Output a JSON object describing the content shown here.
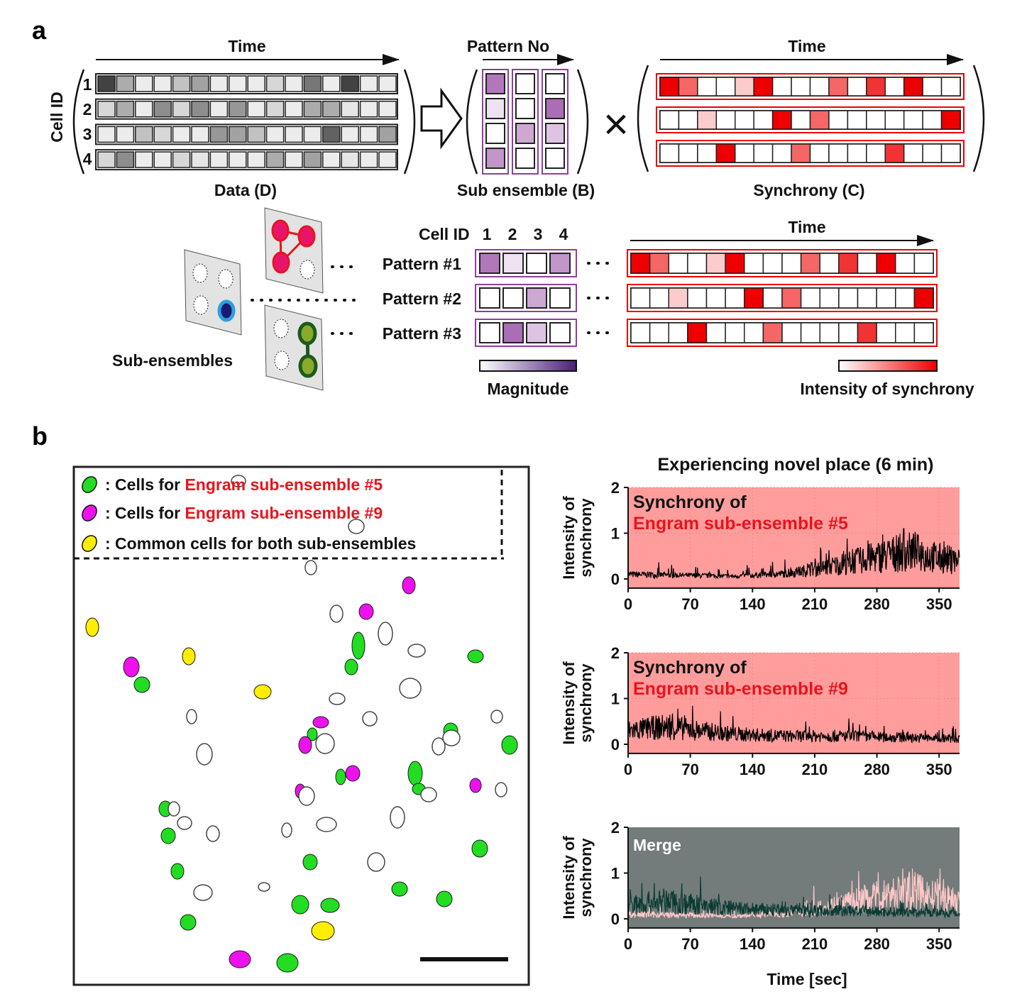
{
  "panel_a": {
    "label": "a",
    "time_label": "Time",
    "cell_id_label": "Cell ID",
    "row_ids": [
      "1",
      "2",
      "3",
      "4"
    ],
    "data_label": "Data (D)",
    "pattern_no_label": "Pattern No",
    "sub_ensemble_label": "Sub ensemble (B)",
    "times_symbol": "×",
    "synchrony_label": "Synchrony (C)",
    "data_matrix_darkness": [
      [
        0.85,
        0.35,
        0.05,
        0.05,
        0.25,
        0.4,
        0.05,
        0.05,
        0.05,
        0.15,
        0.05,
        0.6,
        0.05,
        0.85,
        0.05,
        0.05
      ],
      [
        0.15,
        0.35,
        0.05,
        0.5,
        0.15,
        0.5,
        0.05,
        0.45,
        0.05,
        0.15,
        0.05,
        0.35,
        0.35,
        0.08,
        0.05,
        0.05
      ],
      [
        0.05,
        0.05,
        0.25,
        0.15,
        0.05,
        0.05,
        0.45,
        0.4,
        0.25,
        0.05,
        0.05,
        0.05,
        0.7,
        0.05,
        0.05,
        0.4
      ],
      [
        0.15,
        0.5,
        0.05,
        0.05,
        0.15,
        0.08,
        0.05,
        0.05,
        0.05,
        0.35,
        0.05,
        0.4,
        0.05,
        0.08,
        0.05,
        0.05
      ]
    ],
    "sub_ensemble_magnitude": [
      [
        0.7,
        0.15,
        0,
        0.55
      ],
      [
        0,
        0,
        0.45,
        0
      ],
      [
        0,
        0.75,
        0.3,
        0
      ]
    ],
    "synchrony_intensity": [
      [
        1,
        0.6,
        0,
        0,
        0.2,
        1,
        0,
        0,
        0,
        0.6,
        0,
        0.8,
        0,
        1,
        0,
        0
      ],
      [
        0,
        0,
        0.2,
        0,
        0,
        0,
        1,
        0,
        0.6,
        0,
        0,
        0,
        0,
        0,
        0,
        1
      ],
      [
        0,
        0,
        0,
        1,
        0,
        0,
        0,
        0.6,
        0,
        0,
        0,
        0,
        0.8,
        0,
        0,
        0
      ]
    ],
    "sub_ensembles_label": "Sub-ensembles",
    "cell_id_header": "Cell ID",
    "cell_id_numbers": [
      "1",
      "2",
      "3",
      "4"
    ],
    "patterns": [
      "Pattern #1",
      "Pattern #2",
      "Pattern #3"
    ],
    "magnitude_label": "Magnitude",
    "intensity_label": "Intensity of synchrony",
    "colors": {
      "purple": "#8e3e9e",
      "purple_dark": "#4b1d7a",
      "red": "#ee0000",
      "pattern1": "#e8146c",
      "pattern2": "#1a1a6e",
      "pattern2_ring": "#2aa0e0",
      "pattern3": "#8aaa2a",
      "pattern3_ring": "#1e5a1e"
    }
  },
  "panel_b": {
    "label": "b",
    "legend": [
      {
        "prefix": ": Cells for ",
        "highlight": "Engram sub-ensemble #5",
        "color": "#22dd22"
      },
      {
        "prefix": ": Cells for ",
        "highlight": "Engram sub-ensemble #9",
        "color": "#ee11ee"
      },
      {
        "prefix": ": Common cells for both sub-ensembles",
        "highlight": "",
        "color": "#ffee00"
      }
    ],
    "plot_title": "Experiencing novel place (6 min)",
    "ylabel_line1": "Intensity of",
    "ylabel_line2": "synchrony",
    "xlabel": "Time [sec]",
    "plot1_text_line1": "Synchrony of",
    "plot1_text_line2": "Engram sub-ensemble #5",
    "plot2_text_line1": "Synchrony of",
    "plot2_text_line2": "Engram sub-ensemble #9",
    "plot3_text": "Merge"
  },
  "chart_data": [
    {
      "type": "line",
      "xlim": [
        0,
        373
      ],
      "ylim": [
        -0.2,
        2
      ],
      "xticks": [
        0,
        70,
        140,
        210,
        280,
        350
      ],
      "yticks": [
        0,
        1,
        2
      ],
      "grid": true,
      "background": "#ff9d9d",
      "series": [
        {
          "name": "Engram sub-ensemble #5",
          "color": "#000000",
          "trend_x": [
            0,
            60,
            120,
            180,
            220,
            260,
            300,
            320,
            350,
            373
          ],
          "trend_y": [
            0.1,
            0.08,
            0.06,
            0.12,
            0.25,
            0.4,
            0.55,
            0.6,
            0.45,
            0.4
          ]
        }
      ]
    },
    {
      "type": "line",
      "xlim": [
        0,
        373
      ],
      "ylim": [
        -0.2,
        2
      ],
      "xticks": [
        0,
        70,
        140,
        210,
        280,
        350
      ],
      "yticks": [
        0,
        1,
        2
      ],
      "grid": true,
      "background": "#ff9d9d",
      "series": [
        {
          "name": "Engram sub-ensemble #9",
          "color": "#000000",
          "trend_x": [
            0,
            40,
            70,
            120,
            180,
            240,
            300,
            373
          ],
          "trend_y": [
            0.3,
            0.38,
            0.32,
            0.22,
            0.18,
            0.18,
            0.15,
            0.12
          ]
        }
      ]
    },
    {
      "type": "line",
      "xlabel": "Time [sec]",
      "xlim": [
        0,
        373
      ],
      "ylim": [
        -0.2,
        2
      ],
      "xticks": [
        0,
        70,
        140,
        210,
        280,
        350
      ],
      "yticks": [
        0,
        1,
        2
      ],
      "grid": false,
      "background": "#737b7b",
      "series": [
        {
          "name": "Engram sub-ensemble #5",
          "color": "#ffc8c8",
          "trend_x": [
            0,
            60,
            120,
            180,
            220,
            260,
            300,
            320,
            350,
            373
          ],
          "trend_y": [
            0.1,
            0.08,
            0.06,
            0.12,
            0.25,
            0.4,
            0.55,
            0.6,
            0.45,
            0.4
          ]
        },
        {
          "name": "Engram sub-ensemble #9",
          "color": "#0a3b33",
          "trend_x": [
            0,
            40,
            70,
            120,
            180,
            240,
            300,
            373
          ],
          "trend_y": [
            0.3,
            0.38,
            0.32,
            0.22,
            0.18,
            0.18,
            0.15,
            0.12
          ]
        }
      ]
    }
  ]
}
